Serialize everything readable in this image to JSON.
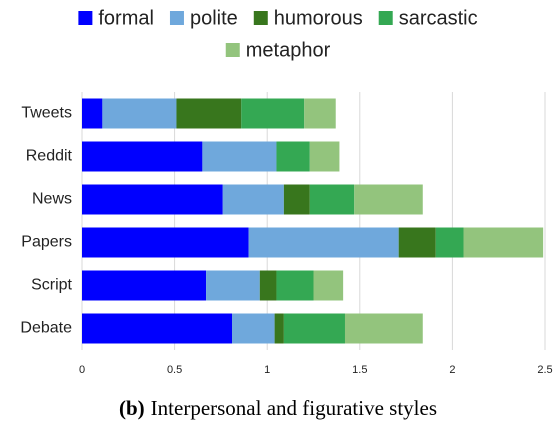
{
  "chart_data": {
    "type": "stacked_barh",
    "categories": [
      "Tweets",
      "Reddit",
      "News",
      "Papers",
      "Script",
      "Debate"
    ],
    "series": [
      {
        "name": "formal",
        "color": "#0000ff",
        "values": [
          0.11,
          0.65,
          0.76,
          0.9,
          0.67,
          0.81
        ]
      },
      {
        "name": "polite",
        "color": "#6fa8dc",
        "values": [
          0.4,
          0.4,
          0.33,
          0.81,
          0.29,
          0.23
        ]
      },
      {
        "name": "humorous",
        "color": "#38761d",
        "values": [
          0.35,
          0,
          0.14,
          0.2,
          0.09,
          0.05
        ]
      },
      {
        "name": "sarcastic",
        "color": "#34a853",
        "values": [
          0.34,
          0.18,
          0.24,
          0.15,
          0.2,
          0.33
        ]
      },
      {
        "name": "metaphor",
        "color": "#93c47d",
        "values": [
          0.17,
          0.16,
          0.37,
          0.43,
          0.16,
          0.42
        ]
      }
    ],
    "xlim": [
      0,
      2.5
    ],
    "xticks": [
      0,
      0.5,
      1,
      1.5,
      2,
      2.5
    ],
    "grid": true,
    "legend": "top",
    "caption": {
      "label": "(b)",
      "text": "Interpersonal and figurative styles"
    }
  }
}
